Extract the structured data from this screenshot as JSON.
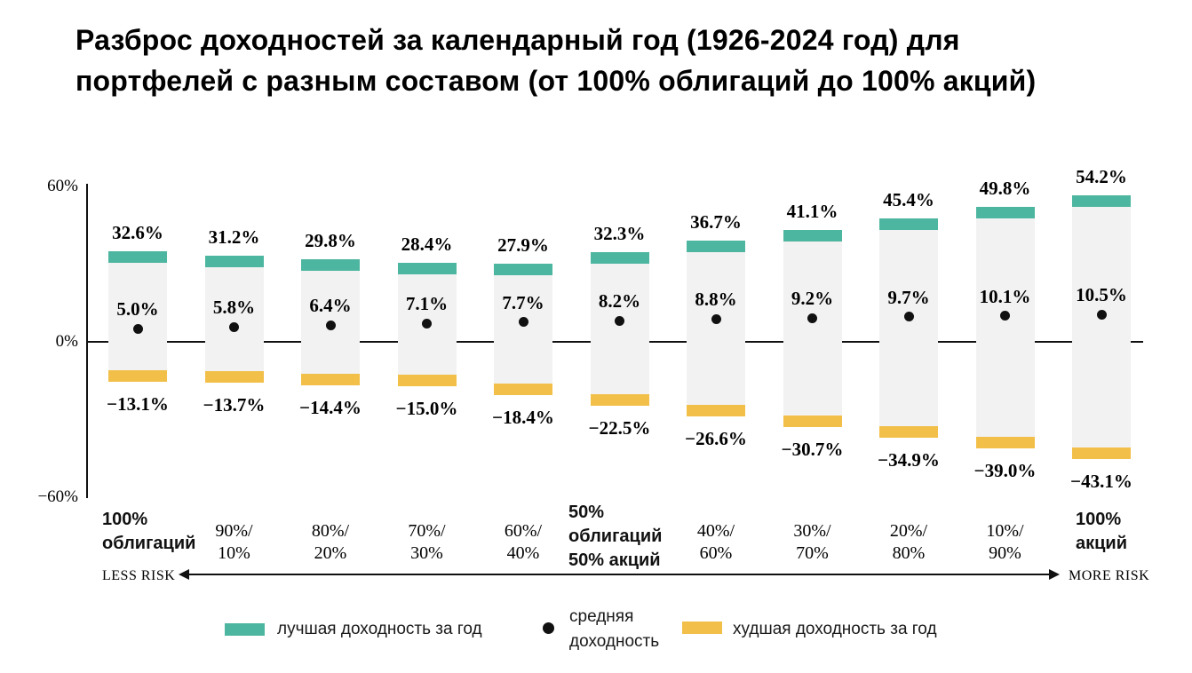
{
  "title_lines": [
    "Разброс доходностей за календарный год (1926-2024 год) для",
    "портфелей с разным составом (от 100% облигаций до 100% акций)"
  ],
  "colors": {
    "best": "#4db6a0",
    "worst": "#f2bf48",
    "bar_bg": "#f2f2f2",
    "dot": "#111111",
    "axis": "#111111"
  },
  "chart_data": {
    "type": "bar",
    "subtype": "floating-range-bar",
    "title": "Разброс доходностей за календарный год (1926-2024 год) для портфелей с разным составом (от 100% облигаций до 100% акций)",
    "categories": [
      "100% облигаций",
      "90%/10%",
      "80%/20%",
      "70%/30%",
      "60%/40%",
      "50% облигаций 50% акций",
      "40%/60%",
      "30%/70%",
      "20%/80%",
      "10%/90%",
      "100% акций"
    ],
    "category_label_lines": [
      [
        "100%",
        "облигаций"
      ],
      [
        "90%/",
        "10%"
      ],
      [
        "80%/",
        "20%"
      ],
      [
        "70%/",
        "30%"
      ],
      [
        "60%/",
        "40%"
      ],
      [
        "50%",
        "облигаций",
        "50% акций"
      ],
      [
        "40%/",
        "60%"
      ],
      [
        "30%/",
        "70%"
      ],
      [
        "20%/",
        "80%"
      ],
      [
        "10%/",
        "90%"
      ],
      [
        "100%",
        "акций"
      ]
    ],
    "category_bold": [
      true,
      false,
      false,
      false,
      false,
      true,
      false,
      false,
      false,
      false,
      true
    ],
    "series": [
      {
        "name": "лучшая доходность за год",
        "role": "best",
        "values": [
          32.6,
          31.2,
          29.8,
          28.4,
          27.9,
          32.3,
          36.7,
          41.1,
          45.4,
          49.8,
          54.2
        ]
      },
      {
        "name": "средняя доходность",
        "role": "mean",
        "values": [
          5.0,
          5.8,
          6.4,
          7.1,
          7.7,
          8.2,
          8.8,
          9.2,
          9.7,
          10.1,
          10.5
        ]
      },
      {
        "name": "худшая доходность за год",
        "role": "worst",
        "values": [
          -13.1,
          -13.7,
          -14.4,
          -15.0,
          -18.4,
          -22.5,
          -26.6,
          -30.7,
          -34.9,
          -39.0,
          -43.1
        ]
      }
    ],
    "ylim": [
      -60,
      60
    ],
    "y_ticks": [
      {
        "value": 60,
        "label": "60%"
      },
      {
        "value": 0,
        "label": "0%"
      },
      {
        "value": -60,
        "label": "−60%"
      }
    ],
    "grid": false,
    "legend_position": "bottom"
  },
  "risk_axis": {
    "less_label": "LESS RISK",
    "more_label": "MORE RISK"
  },
  "legend": {
    "best": {
      "label": "лучшая доходность за год"
    },
    "mean": {
      "lines": [
        "средняя",
        "доходность"
      ]
    },
    "worst": {
      "label": "худшая доходность за год"
    }
  }
}
